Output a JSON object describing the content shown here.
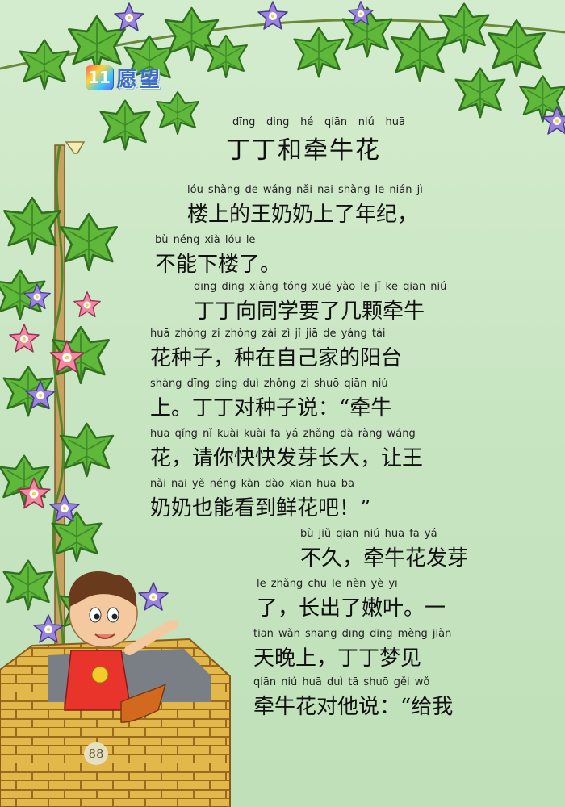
{
  "lesson": {
    "number": "11",
    "unit_title": "愿望"
  },
  "title": {
    "pinyin": [
      "dīng",
      "ding",
      "hé",
      "qiān",
      "niú",
      "huā"
    ],
    "text": "丁丁和牵牛花"
  },
  "lines": [
    {
      "pinyin": "lóu shàng de wáng nǎi nai shàng le nián jì",
      "text": "楼上的王奶奶上了年纪，"
    },
    {
      "pinyin": "bù néng xià lóu le",
      "text": "不能下楼了。"
    },
    {
      "pinyin": "dīng ding xiàng tóng xué yào le jǐ kē qiān niú",
      "text": "丁丁向同学要了几颗牵牛"
    },
    {
      "pinyin": "huā zhǒng zi zhòng zài zì jǐ jiā de yáng tái",
      "text": "花种子，种在自己家的阳台"
    },
    {
      "pinyin": "shàng dīng ding duì zhǒng zi shuō qiān niú",
      "text": "上。丁丁对种子说：“牵牛"
    },
    {
      "pinyin": "huā qǐng nǐ kuài kuài fā yá zhǎng dà ràng wáng",
      "text": "花，请你快快发芽长大，让王"
    },
    {
      "pinyin": "nǎi nai yě néng kàn dào xiān huā ba",
      "text": "奶奶也能看到鲜花吧！”"
    },
    {
      "pinyin": "bù jiǔ qiān niú huā fā yá",
      "text": "不久，牵牛花发芽"
    },
    {
      "pinyin": "le zhǎng chū le nèn yè yī",
      "text": "了，长出了嫩叶。一"
    },
    {
      "pinyin": "tiān wǎn shang dīng ding mèng jiàn",
      "text": "天晚上，丁丁梦见"
    },
    {
      "pinyin": "qiān niú huā duì tā shuō gěi wǒ",
      "text": "牵牛花对他说：“给我"
    }
  ],
  "page_number": "88",
  "colors": {
    "background": "#c9e6c4",
    "leaf": "#5fb83a",
    "flower": "#8f78d8",
    "text": "#111111"
  }
}
